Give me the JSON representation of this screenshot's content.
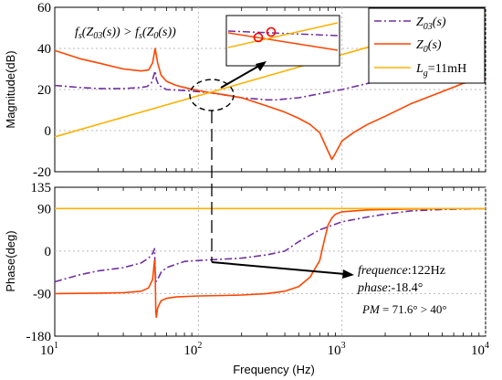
{
  "chart_data": [
    {
      "type": "line",
      "ylabel": "Magnitude(dB)",
      "xscale": "log",
      "xlim": [
        10,
        10000
      ],
      "ylim": [
        -20,
        60
      ],
      "yticks": [
        "60",
        "40",
        "20",
        "0",
        "-20"
      ],
      "legend_position": "top-right",
      "legend": [
        "Z′₀₃(s)",
        "Z₀(s)",
        "L_g=11mH"
      ],
      "legend_text": {
        "z03": "Z",
        "z03_sub": "03",
        "z03_arg": "(s)",
        "z0": "Z",
        "z0_sub": "0",
        "z0_arg": "(s)",
        "lg": "L",
        "lg_sub": "g",
        "lg_val": "=11mH"
      },
      "annotation_parts": {
        "fs": "f",
        "fs_sub": "s",
        "left": "(Z",
        "left_sub": "03",
        "mid": "(s)) > f",
        "mid_sub": "s",
        "right": "(Z",
        "right_sub": "0",
        "end": "(s))"
      },
      "series": [
        {
          "name": "Z03'(s)",
          "color": "#7030a0",
          "style": "dash-dot",
          "x": [
            10,
            15,
            20,
            30,
            40,
            44,
            47,
            49,
            50,
            51,
            53,
            60,
            80,
            100,
            122,
            200,
            300,
            350,
            500,
            1000,
            2000,
            4000,
            7000,
            10000
          ],
          "y": [
            22,
            21,
            20.5,
            20.5,
            21,
            21.5,
            23,
            27,
            29,
            25,
            22,
            20,
            19.5,
            19,
            18.4,
            16,
            15,
            15,
            16,
            20,
            25,
            30,
            34,
            37
          ]
        },
        {
          "name": "Z0(s)",
          "color": "#ff4500",
          "style": "solid",
          "x": [
            10,
            15,
            20,
            30,
            40,
            45,
            48,
            50,
            52,
            55,
            60,
            70,
            80,
            100,
            122,
            150,
            200,
            300,
            400,
            500,
            600,
            700,
            800,
            850,
            900,
            1000,
            1200,
            1500,
            2000,
            3000,
            5000,
            7000,
            10000
          ],
          "y": [
            39,
            35,
            33,
            30,
            29,
            29.5,
            33,
            40,
            33,
            27,
            24,
            22,
            21,
            19.5,
            18.4,
            17.5,
            16,
            12,
            9,
            6,
            3,
            -1,
            -10,
            -14,
            -11,
            -5,
            -1,
            3,
            7,
            13,
            19,
            23,
            25
          ]
        },
        {
          "name": "Lg=11mH",
          "color": "#ffb000",
          "style": "solid",
          "x": [
            10,
            10000
          ],
          "y": [
            -3,
            57
          ]
        }
      ]
    },
    {
      "type": "line",
      "ylabel": "Phase(deg)",
      "xlabel": "Frequency (Hz)",
      "xscale": "log",
      "xlim": [
        10,
        10000
      ],
      "ylim": [
        -180,
        135
      ],
      "yticks": [
        "135",
        "90",
        "0",
        "-90",
        "-180"
      ],
      "xticks_base": "10",
      "xticks_exp": [
        "1",
        "2",
        "3",
        "4"
      ],
      "annotations": {
        "freq_label": "frequence",
        "freq_value": ":122Hz",
        "phase_label": "phase",
        "phase_value": ":-18.4°",
        "pm": "PM",
        "pm_value": " = 71.6° > 40°"
      },
      "series": [
        {
          "name": "Z03'(s)",
          "color": "#7030a0",
          "style": "dash-dot",
          "x": [
            10,
            15,
            20,
            30,
            40,
            45,
            48,
            49.5,
            50,
            50.5,
            52,
            55,
            60,
            70,
            80,
            100,
            122,
            150,
            200,
            300,
            400,
            500,
            700,
            1000,
            1500,
            2000,
            3000,
            5000,
            10000
          ],
          "y": [
            -65,
            -50,
            -42,
            -35,
            -25,
            -15,
            -5,
            5,
            -40,
            -65,
            -60,
            -45,
            -35,
            -28,
            -22,
            -20,
            -18.4,
            -17,
            -15,
            -8,
            0,
            20,
            45,
            62,
            72,
            78,
            85,
            88,
            90
          ]
        },
        {
          "name": "Z0(s)",
          "color": "#ff4500",
          "style": "solid",
          "x": [
            10,
            20,
            30,
            40,
            45,
            48,
            49.5,
            50,
            50.5,
            51,
            52,
            55,
            60,
            70,
            100,
            150,
            200,
            300,
            400,
            500,
            600,
            700,
            750,
            800,
            850,
            900,
            1000,
            1500,
            2000,
            3000,
            5000,
            10000
          ],
          "y": [
            -90,
            -89,
            -88,
            -85,
            -78,
            -60,
            -20,
            -40,
            -130,
            -140,
            -120,
            -105,
            -100,
            -97,
            -95,
            -94,
            -93,
            -90,
            -85,
            -75,
            -55,
            -20,
            20,
            55,
            70,
            78,
            83,
            87,
            88,
            89,
            90,
            90
          ]
        },
        {
          "name": "Lg=11mH",
          "color": "#ffb000",
          "style": "solid",
          "x": [
            10,
            10000
          ],
          "y": [
            90,
            90
          ]
        }
      ]
    }
  ]
}
